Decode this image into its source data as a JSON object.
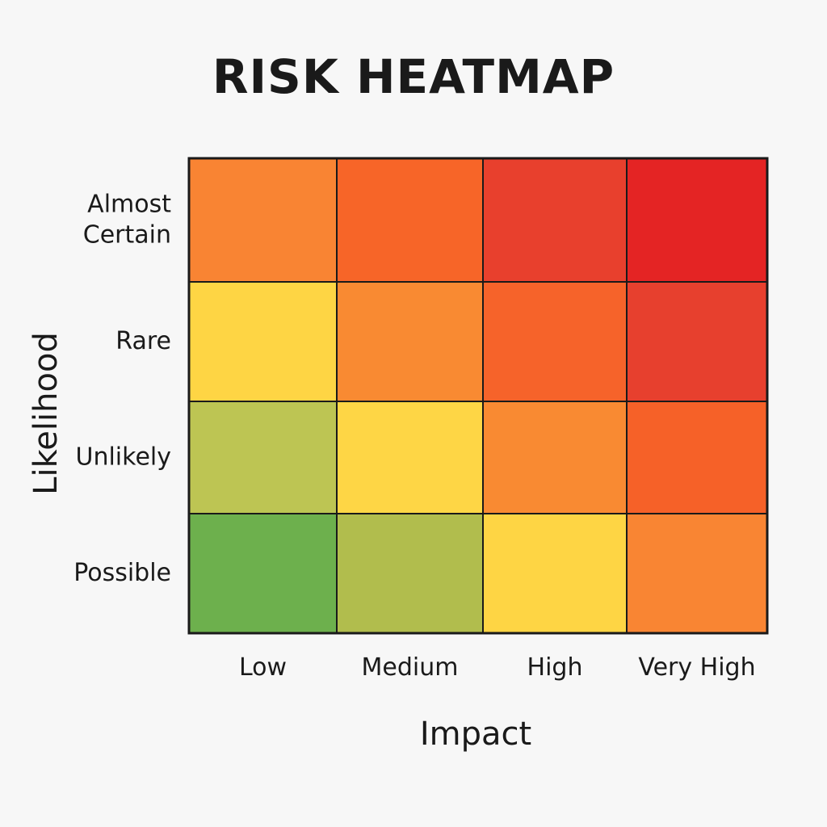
{
  "chart_data": {
    "type": "heatmap",
    "title": "RISK HEATMAP",
    "xlabel": "Impact",
    "ylabel": "Likelihood",
    "x_categories": [
      "Low",
      "Medium",
      "High",
      "Very High"
    ],
    "y_categories": [
      "Almost Certain",
      "Rare",
      "Unlikely",
      "Possible"
    ],
    "y_category_lines": [
      [
        "Almost",
        "Certain"
      ],
      [
        "Rare"
      ],
      [
        "Unlikely"
      ],
      [
        "Possible"
      ]
    ],
    "cell_colors": [
      [
        "#f98433",
        "#f76528",
        "#e8402d",
        "#e42424"
      ],
      [
        "#fed544",
        "#f98a32",
        "#f6632a",
        "#e7402e"
      ],
      [
        "#bdc553",
        "#fed645",
        "#f98a32",
        "#f66128"
      ],
      [
        "#6db04d",
        "#b1bd4d",
        "#fed544",
        "#f98533"
      ]
    ],
    "legend": "none",
    "grid": true
  }
}
